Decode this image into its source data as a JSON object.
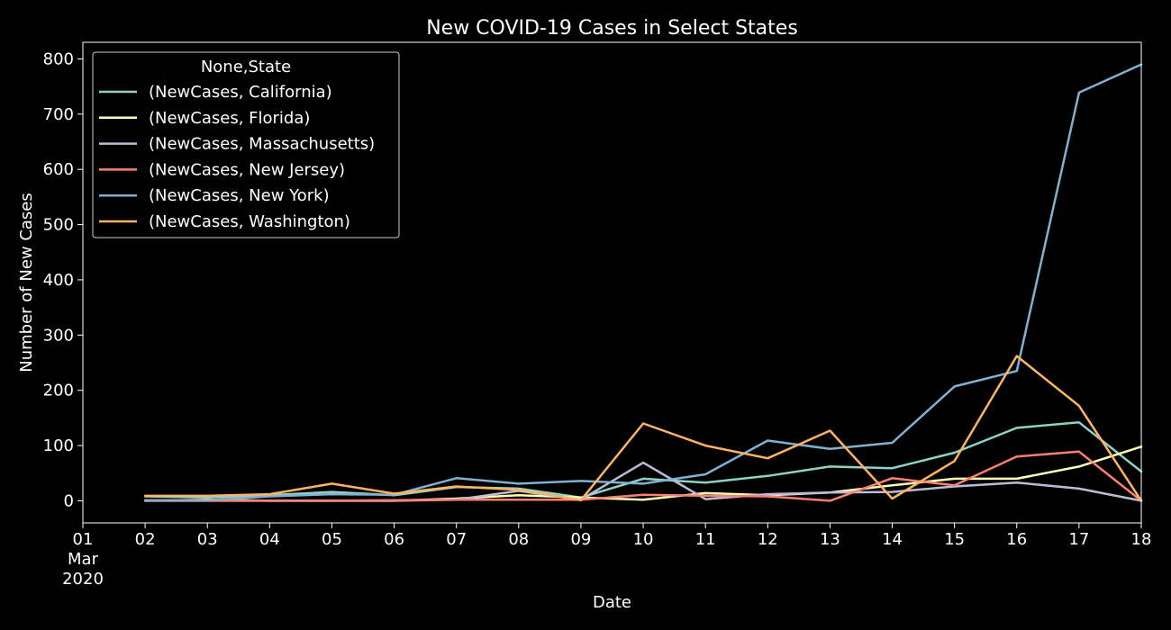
{
  "chart_data": {
    "type": "line",
    "title": "New COVID-19 Cases in Select States",
    "xlabel": "Date",
    "ylabel": "Number of New Cases",
    "legend": {
      "title": "None,State",
      "placement": "top-left"
    },
    "grid": false,
    "x": [
      "2020-03-01",
      "2020-03-02",
      "2020-03-03",
      "2020-03-04",
      "2020-03-05",
      "2020-03-06",
      "2020-03-07",
      "2020-03-08",
      "2020-03-09",
      "2020-03-10",
      "2020-03-11",
      "2020-03-12",
      "2020-03-13",
      "2020-03-14",
      "2020-03-15",
      "2020-03-16",
      "2020-03-17",
      "2020-03-18"
    ],
    "x_tick_labels": [
      {
        "date": "2020-03-01",
        "lines": [
          "01",
          "Mar",
          "2020"
        ]
      },
      {
        "date": "2020-03-02",
        "lines": [
          "02"
        ]
      },
      {
        "date": "2020-03-03",
        "lines": [
          "03"
        ]
      },
      {
        "date": "2020-03-04",
        "lines": [
          "04"
        ]
      },
      {
        "date": "2020-03-05",
        "lines": [
          "05"
        ]
      },
      {
        "date": "2020-03-06",
        "lines": [
          "06"
        ]
      },
      {
        "date": "2020-03-07",
        "lines": [
          "07"
        ]
      },
      {
        "date": "2020-03-08",
        "lines": [
          "08"
        ]
      },
      {
        "date": "2020-03-09",
        "lines": [
          "09"
        ]
      },
      {
        "date": "2020-03-10",
        "lines": [
          "10"
        ]
      },
      {
        "date": "2020-03-11",
        "lines": [
          "11"
        ]
      },
      {
        "date": "2020-03-12",
        "lines": [
          "12"
        ]
      },
      {
        "date": "2020-03-13",
        "lines": [
          "13"
        ]
      },
      {
        "date": "2020-03-14",
        "lines": [
          "14"
        ]
      },
      {
        "date": "2020-03-15",
        "lines": [
          "15"
        ]
      },
      {
        "date": "2020-03-16",
        "lines": [
          "16"
        ]
      },
      {
        "date": "2020-03-17",
        "lines": [
          "17"
        ]
      },
      {
        "date": "2020-03-18",
        "lines": [
          "18"
        ]
      }
    ],
    "xlim": [
      "2020-03-01",
      "2020-03-18"
    ],
    "ylim": [
      -40,
      830
    ],
    "y_ticks": [
      0,
      100,
      200,
      300,
      400,
      500,
      600,
      700,
      800
    ],
    "series": [
      {
        "name": "(NewCases, California)",
        "color": "#8dd3c7",
        "x": [
          "2020-03-02",
          "2020-03-03",
          "2020-03-04",
          "2020-03-05",
          "2020-03-06",
          "2020-03-07",
          "2020-03-08",
          "2020-03-09",
          "2020-03-10",
          "2020-03-11",
          "2020-03-12",
          "2020-03-13",
          "2020-03-14",
          "2020-03-15",
          "2020-03-16",
          "2020-03-17",
          "2020-03-18"
        ],
        "values": [
          8,
          6,
          10,
          16,
          10,
          25,
          22,
          6,
          40,
          33,
          45,
          62,
          59,
          87,
          132,
          142,
          53
        ]
      },
      {
        "name": "(NewCases, Florida)",
        "color": "#ffffb3",
        "x": [
          "2020-03-02",
          "2020-03-03",
          "2020-03-04",
          "2020-03-05",
          "2020-03-06",
          "2020-03-07",
          "2020-03-08",
          "2020-03-09",
          "2020-03-10",
          "2020-03-11",
          "2020-03-12",
          "2020-03-13",
          "2020-03-14",
          "2020-03-15",
          "2020-03-16",
          "2020-03-17",
          "2020-03-18"
        ],
        "values": [
          0,
          2,
          0,
          0,
          0,
          4,
          10,
          6,
          2,
          14,
          10,
          15,
          28,
          40,
          40,
          62,
          98
        ]
      },
      {
        "name": "(NewCases, Massachusetts)",
        "color": "#bebada",
        "x": [
          "2020-03-02",
          "2020-03-03",
          "2020-03-04",
          "2020-03-05",
          "2020-03-06",
          "2020-03-07",
          "2020-03-08",
          "2020-03-09",
          "2020-03-10",
          "2020-03-11",
          "2020-03-12",
          "2020-03-13",
          "2020-03-14",
          "2020-03-15",
          "2020-03-16",
          "2020-03-17",
          "2020-03-18"
        ],
        "values": [
          0,
          0,
          0,
          0,
          0,
          2,
          18,
          2,
          69,
          3,
          12,
          15,
          16,
          26,
          33,
          22,
          0
        ]
      },
      {
        "name": "(NewCases, New Jersey)",
        "color": "#fb8072",
        "x": [
          "2020-03-02",
          "2020-03-03",
          "2020-03-04",
          "2020-03-05",
          "2020-03-06",
          "2020-03-07",
          "2020-03-08",
          "2020-03-09",
          "2020-03-10",
          "2020-03-11",
          "2020-03-12",
          "2020-03-13",
          "2020-03-14",
          "2020-03-15",
          "2020-03-16",
          "2020-03-17",
          "2020-03-18"
        ],
        "values": [
          0,
          0,
          0,
          0,
          1,
          2,
          2,
          2,
          11,
          9,
          8,
          0,
          41,
          28,
          80,
          89,
          0
        ]
      },
      {
        "name": "(NewCases, New York)",
        "color": "#80b1d3",
        "x": [
          "2020-03-02",
          "2020-03-03",
          "2020-03-04",
          "2020-03-05",
          "2020-03-06",
          "2020-03-07",
          "2020-03-08",
          "2020-03-09",
          "2020-03-10",
          "2020-03-11",
          "2020-03-12",
          "2020-03-13",
          "2020-03-14",
          "2020-03-15",
          "2020-03-16",
          "2020-03-17",
          "2020-03-18"
        ],
        "values": [
          1,
          1,
          8,
          12,
          11,
          41,
          31,
          36,
          31,
          48,
          109,
          94,
          105,
          207,
          235,
          739,
          790
        ]
      },
      {
        "name": "(NewCases, Washington)",
        "color": "#fdb462",
        "x": [
          "2020-03-02",
          "2020-03-03",
          "2020-03-04",
          "2020-03-05",
          "2020-03-06",
          "2020-03-07",
          "2020-03-08",
          "2020-03-09",
          "2020-03-10",
          "2020-03-11",
          "2020-03-12",
          "2020-03-13",
          "2020-03-14",
          "2020-03-15",
          "2020-03-16",
          "2020-03-17",
          "2020-03-18"
        ],
        "values": [
          9,
          9,
          12,
          31,
          13,
          26,
          20,
          1,
          140,
          100,
          77,
          127,
          4,
          72,
          262,
          172,
          0
        ]
      }
    ]
  }
}
